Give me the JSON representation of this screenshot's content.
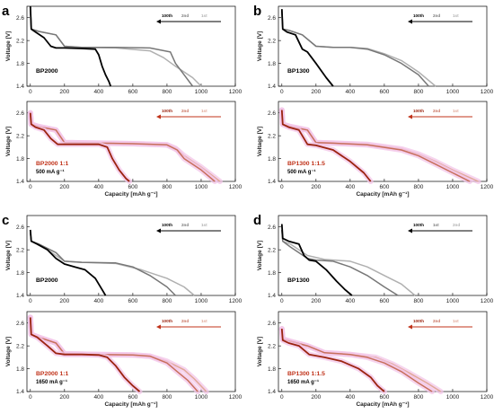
{
  "colors": {
    "black_set": [
      "#000000",
      "#777777",
      "#b0b0b0"
    ],
    "red_set": [
      "#9b2410",
      "#c76f5c",
      "#e0a898"
    ],
    "red_label": "#c0331a",
    "halo": "#f3c6e8"
  },
  "chart_data": [
    {
      "type": "line",
      "letter": "a",
      "sample": "BP2000",
      "rate": "",
      "palette": "black",
      "show_xlabel": false,
      "xlabel": "Capacity [mAh g⁻¹]",
      "ylabel": "Voltage [V]",
      "xlim": [
        -20,
        1200
      ],
      "ylim": [
        1.4,
        2.8
      ],
      "xticks": [
        0,
        200,
        400,
        600,
        800,
        1000,
        1200
      ],
      "yticks": [
        1.4,
        1.8,
        2.2,
        2.6
      ],
      "legend": [
        "100th",
        "2nd",
        "1st"
      ],
      "series": [
        {
          "name": "100th",
          "x": [
            0,
            5,
            30,
            80,
            120,
            150,
            200,
            300,
            380,
            400,
            420,
            440,
            460,
            470
          ],
          "y": [
            2.8,
            2.4,
            2.35,
            2.25,
            2.1,
            2.07,
            2.07,
            2.06,
            2.05,
            1.95,
            1.75,
            1.6,
            1.48,
            1.4
          ]
        },
        {
          "name": "2nd",
          "x": [
            0,
            5,
            50,
            150,
            200,
            300,
            500,
            700,
            820,
            850,
            900,
            950
          ],
          "y": [
            2.8,
            2.4,
            2.36,
            2.3,
            2.1,
            2.08,
            2.08,
            2.07,
            2.0,
            1.8,
            1.6,
            1.4
          ]
        },
        {
          "name": "1st",
          "x": [
            0,
            5,
            50,
            150,
            200,
            300,
            500,
            700,
            780,
            850,
            950,
            1000
          ],
          "y": [
            2.8,
            2.4,
            2.36,
            2.3,
            2.1,
            2.08,
            2.07,
            2.02,
            1.9,
            1.75,
            1.55,
            1.4
          ]
        }
      ]
    },
    {
      "type": "line",
      "letter": "b",
      "sample": "BP1300",
      "rate": "",
      "palette": "black",
      "show_xlabel": false,
      "xlabel": "Capacity [mAh g⁻¹]",
      "ylabel": "Voltage [V]",
      "xlim": [
        -20,
        1200
      ],
      "ylim": [
        1.4,
        2.8
      ],
      "xticks": [
        0,
        200,
        400,
        600,
        800,
        1000,
        1200
      ],
      "yticks": [
        1.4,
        1.8,
        2.2,
        2.6
      ],
      "legend": [
        "100th",
        "2nd",
        "1st"
      ],
      "series": [
        {
          "name": "100th",
          "x": [
            0,
            5,
            30,
            80,
            120,
            150,
            200,
            260,
            300
          ],
          "y": [
            2.75,
            2.4,
            2.35,
            2.3,
            2.05,
            2.0,
            1.8,
            1.55,
            1.4
          ]
        },
        {
          "name": "2nd",
          "x": [
            0,
            5,
            40,
            120,
            200,
            300,
            400,
            500,
            600,
            700,
            800,
            860
          ],
          "y": [
            2.75,
            2.4,
            2.38,
            2.3,
            2.1,
            2.08,
            2.08,
            2.05,
            1.95,
            1.8,
            1.6,
            1.4
          ]
        },
        {
          "name": "1st",
          "x": [
            0,
            5,
            40,
            120,
            200,
            300,
            400,
            500,
            600,
            700,
            800,
            900
          ],
          "y": [
            2.75,
            2.4,
            2.38,
            2.3,
            2.1,
            2.08,
            2.08,
            2.06,
            1.97,
            1.85,
            1.65,
            1.4
          ]
        }
      ]
    },
    {
      "type": "line",
      "letter": "",
      "sample": "BP2000 1:1",
      "rate": "500 mA g⁻¹",
      "palette": "red",
      "show_xlabel": true,
      "xlabel": "Capacity [mAh g⁻¹]",
      "ylabel": "Voltage [V]",
      "xlim": [
        -20,
        1200
      ],
      "ylim": [
        1.4,
        2.8
      ],
      "xticks": [
        0,
        200,
        400,
        600,
        800,
        1000,
        1200
      ],
      "yticks": [
        1.4,
        1.8,
        2.2,
        2.6
      ],
      "legend": [
        "100th",
        "2nd",
        "1st"
      ],
      "series": [
        {
          "name": "100th",
          "x": [
            0,
            5,
            30,
            80,
            120,
            160,
            200,
            300,
            400,
            450,
            480,
            520,
            560,
            580
          ],
          "y": [
            2.6,
            2.4,
            2.35,
            2.3,
            2.15,
            2.05,
            2.05,
            2.05,
            2.05,
            2.0,
            1.8,
            1.6,
            1.45,
            1.4
          ]
        },
        {
          "name": "2nd",
          "x": [
            0,
            5,
            50,
            150,
            200,
            400,
            600,
            800,
            860,
            900,
            1000,
            1080
          ],
          "y": [
            2.6,
            2.4,
            2.36,
            2.3,
            2.08,
            2.07,
            2.06,
            2.04,
            1.95,
            1.8,
            1.6,
            1.4
          ]
        },
        {
          "name": "1st",
          "x": [
            0,
            5,
            50,
            150,
            200,
            400,
            600,
            800,
            850,
            900,
            1000,
            1110
          ],
          "y": [
            2.6,
            2.4,
            2.36,
            2.3,
            2.08,
            2.07,
            2.06,
            2.04,
            1.98,
            1.85,
            1.65,
            1.4
          ]
        }
      ]
    },
    {
      "type": "line",
      "letter": "",
      "sample": "BP1300 1:1.5",
      "rate": "500 mA g⁻¹",
      "palette": "red",
      "show_xlabel": true,
      "xlabel": "Capacity [mAh g⁻¹]",
      "ylabel": "Voltage [V]",
      "xlim": [
        -20,
        1200
      ],
      "ylim": [
        1.4,
        2.8
      ],
      "xticks": [
        0,
        200,
        400,
        600,
        800,
        1000,
        1200
      ],
      "yticks": [
        1.4,
        1.8,
        2.2,
        2.6
      ],
      "legend": [
        "100th",
        "2nd",
        "1st"
      ],
      "series": [
        {
          "name": "100th",
          "x": [
            0,
            5,
            40,
            100,
            150,
            200,
            300,
            400,
            480,
            520
          ],
          "y": [
            2.65,
            2.4,
            2.35,
            2.3,
            2.05,
            2.03,
            1.95,
            1.75,
            1.55,
            1.4
          ]
        },
        {
          "name": "2nd",
          "x": [
            0,
            5,
            50,
            150,
            200,
            300,
            500,
            700,
            800,
            900,
            1000,
            1100
          ],
          "y": [
            2.65,
            2.4,
            2.36,
            2.3,
            2.08,
            2.07,
            2.04,
            1.95,
            1.85,
            1.7,
            1.55,
            1.4
          ]
        },
        {
          "name": "1st",
          "x": [
            0,
            5,
            50,
            150,
            200,
            300,
            500,
            700,
            800,
            900,
            1000,
            1150
          ],
          "y": [
            2.65,
            2.4,
            2.36,
            2.3,
            2.08,
            2.07,
            2.05,
            1.97,
            1.88,
            1.75,
            1.6,
            1.4
          ]
        }
      ]
    },
    {
      "type": "line",
      "letter": "c",
      "sample": "BP2000",
      "rate": "",
      "palette": "black",
      "show_xlabel": false,
      "xlabel": "Capacity [mAh g⁻¹]",
      "ylabel": "Voltage [V]",
      "xlim": [
        -20,
        1200
      ],
      "ylim": [
        1.4,
        2.8
      ],
      "xticks": [
        0,
        200,
        400,
        600,
        800,
        1000,
        1200
      ],
      "yticks": [
        1.4,
        1.8,
        2.2,
        2.6
      ],
      "legend": [
        "100th",
        "2nd",
        "1st"
      ],
      "series": [
        {
          "name": "100th",
          "x": [
            0,
            5,
            40,
            100,
            150,
            200,
            260,
            320,
            380,
            420,
            440
          ],
          "y": [
            2.55,
            2.35,
            2.3,
            2.2,
            2.05,
            1.95,
            1.9,
            1.85,
            1.7,
            1.5,
            1.4
          ]
        },
        {
          "name": "2nd",
          "x": [
            0,
            5,
            50,
            150,
            200,
            300,
            500,
            600,
            700,
            800,
            850
          ],
          "y": [
            2.5,
            2.35,
            2.3,
            2.15,
            2.0,
            1.98,
            1.97,
            1.9,
            1.75,
            1.55,
            1.4
          ]
        },
        {
          "name": "1st",
          "x": [
            0,
            5,
            50,
            150,
            200,
            300,
            500,
            650,
            800,
            900,
            960
          ],
          "y": [
            2.5,
            2.35,
            2.3,
            2.1,
            2.0,
            1.98,
            1.96,
            1.85,
            1.7,
            1.55,
            1.4
          ]
        }
      ]
    },
    {
      "type": "line",
      "letter": "d",
      "sample": "BP1300",
      "rate": "",
      "palette": "black",
      "show_xlabel": false,
      "xlabel": "Capacity [mAh g⁻¹]",
      "ylabel": "Voltage [V]",
      "xlim": [
        -20,
        1200
      ],
      "ylim": [
        1.4,
        2.8
      ],
      "xticks": [
        0,
        200,
        400,
        600,
        800,
        1000,
        1200
      ],
      "yticks": [
        1.4,
        1.8,
        2.2,
        2.6
      ],
      "legend": [
        "100th",
        "1st",
        "2nd"
      ],
      "series": [
        {
          "name": "100th",
          "x": [
            0,
            5,
            40,
            100,
            130,
            160,
            200,
            260,
            320,
            370,
            410
          ],
          "y": [
            2.65,
            2.4,
            2.35,
            2.3,
            2.1,
            2.02,
            2.0,
            1.85,
            1.65,
            1.5,
            1.4
          ]
        },
        {
          "name": "1st",
          "x": [
            0,
            5,
            50,
            150,
            200,
            300,
            400,
            500,
            600,
            680
          ],
          "y": [
            2.55,
            2.35,
            2.25,
            2.05,
            2.02,
            2.0,
            1.9,
            1.75,
            1.55,
            1.4
          ]
        },
        {
          "name": "2nd",
          "x": [
            0,
            5,
            50,
            150,
            250,
            400,
            500,
            600,
            700,
            780
          ],
          "y": [
            2.55,
            2.35,
            2.3,
            2.1,
            2.03,
            2.0,
            1.9,
            1.75,
            1.6,
            1.4
          ]
        }
      ]
    },
    {
      "type": "line",
      "letter": "",
      "sample": "BP2000 1:1",
      "rate": "1650 mA g⁻¹",
      "palette": "red",
      "show_xlabel": true,
      "xlabel": "Capacity [mAh g⁻¹]",
      "ylabel": "Voltage [V]",
      "xlim": [
        -20,
        1200
      ],
      "ylim": [
        1.4,
        2.8
      ],
      "xticks": [
        0,
        200,
        400,
        600,
        800,
        1000,
        1200
      ],
      "yticks": [
        1.4,
        1.8,
        2.2,
        2.6
      ],
      "legend": [
        "100th",
        "2nd",
        "1st"
      ],
      "series": [
        {
          "name": "100th",
          "x": [
            0,
            5,
            40,
            100,
            150,
            200,
            300,
            400,
            450,
            500,
            550,
            600,
            640
          ],
          "y": [
            2.7,
            2.4,
            2.35,
            2.2,
            2.07,
            2.05,
            2.05,
            2.04,
            2.0,
            1.85,
            1.65,
            1.5,
            1.4
          ]
        },
        {
          "name": "2nd",
          "x": [
            0,
            5,
            50,
            150,
            200,
            400,
            600,
            700,
            800,
            860,
            920,
            980
          ],
          "y": [
            2.7,
            2.4,
            2.35,
            2.25,
            2.06,
            2.05,
            2.04,
            2.02,
            1.9,
            1.75,
            1.6,
            1.4
          ]
        },
        {
          "name": "1st",
          "x": [
            0,
            5,
            50,
            150,
            200,
            400,
            600,
            700,
            800,
            900,
            960,
            1030
          ],
          "y": [
            2.7,
            2.4,
            2.35,
            2.25,
            2.06,
            2.05,
            2.04,
            2.02,
            1.93,
            1.78,
            1.62,
            1.4
          ]
        }
      ]
    },
    {
      "type": "line",
      "letter": "",
      "sample": "BP1300 1:1.5",
      "rate": "1650 mA g⁻¹",
      "palette": "red",
      "show_xlabel": true,
      "xlabel": "Capacity [mAh g⁻¹]",
      "ylabel": "Voltage [V]",
      "xlim": [
        -20,
        1200
      ],
      "ylim": [
        1.4,
        2.8
      ],
      "xticks": [
        0,
        200,
        400,
        600,
        800,
        1000,
        1200
      ],
      "yticks": [
        1.4,
        1.8,
        2.2,
        2.6
      ],
      "legend": [
        "100th",
        "2nd",
        "1st"
      ],
      "series": [
        {
          "name": "100th",
          "x": [
            0,
            5,
            40,
            100,
            160,
            250,
            350,
            450,
            520,
            560,
            600
          ],
          "y": [
            2.5,
            2.3,
            2.25,
            2.2,
            2.05,
            2.0,
            1.93,
            1.8,
            1.65,
            1.5,
            1.4
          ]
        },
        {
          "name": "2nd",
          "x": [
            0,
            5,
            50,
            150,
            250,
            400,
            500,
            600,
            700,
            800,
            880
          ],
          "y": [
            2.5,
            2.32,
            2.28,
            2.2,
            2.08,
            2.05,
            2.0,
            1.9,
            1.75,
            1.55,
            1.4
          ]
        },
        {
          "name": "1st",
          "x": [
            0,
            5,
            50,
            150,
            250,
            400,
            550,
            650,
            750,
            850,
            930
          ],
          "y": [
            2.5,
            2.32,
            2.28,
            2.2,
            2.08,
            2.05,
            2.0,
            1.88,
            1.72,
            1.55,
            1.4
          ]
        }
      ]
    }
  ]
}
